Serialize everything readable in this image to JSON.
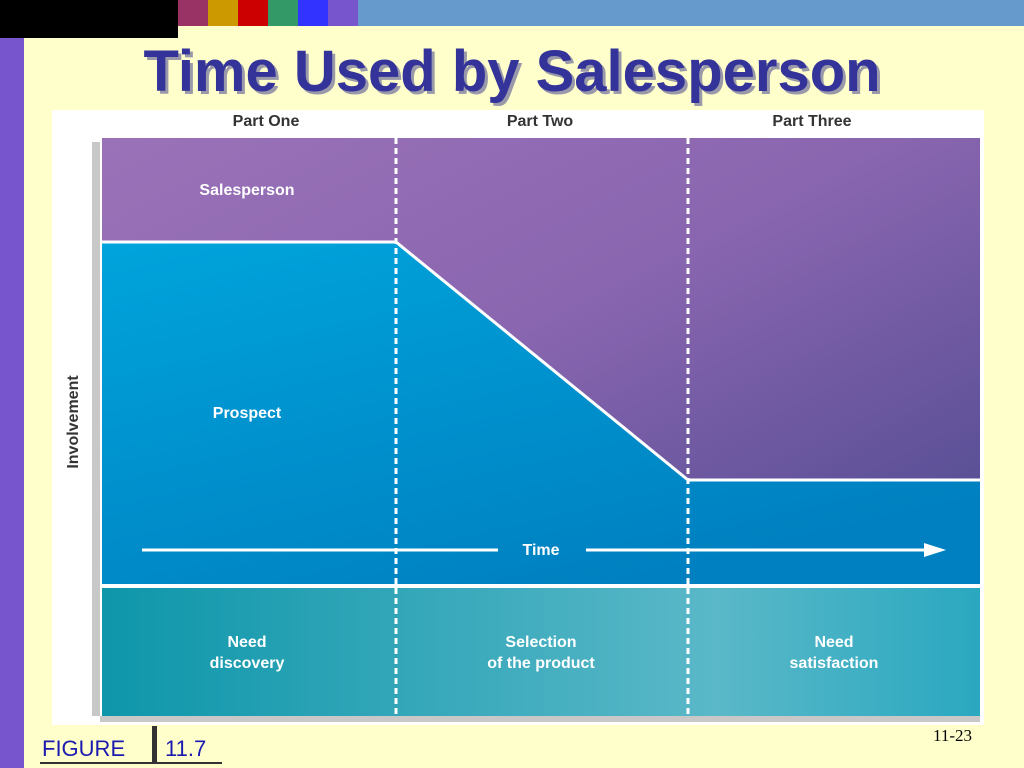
{
  "slide": {
    "title": "Time Used by Salesperson",
    "figure_word": "FIGURE",
    "figure_number": "11.7",
    "page_number": "11-23"
  },
  "diagram": {
    "parts": [
      "Part One",
      "Part Two",
      "Part Three"
    ],
    "y_axis_label": "Involvement",
    "regions": {
      "salesperson": "Salesperson",
      "prospect": "Prospect"
    },
    "time_label": "Time",
    "stages": [
      [
        "Need",
        "discovery"
      ],
      [
        "Selection",
        "of the product"
      ],
      [
        "Need",
        "satisfaction"
      ]
    ]
  },
  "colors": {
    "title": "#333399",
    "salesperson_region": "#8866aa",
    "prospect_region": "#0099cc",
    "stage_band": "#22a9b8",
    "background": "#ffffcc"
  }
}
